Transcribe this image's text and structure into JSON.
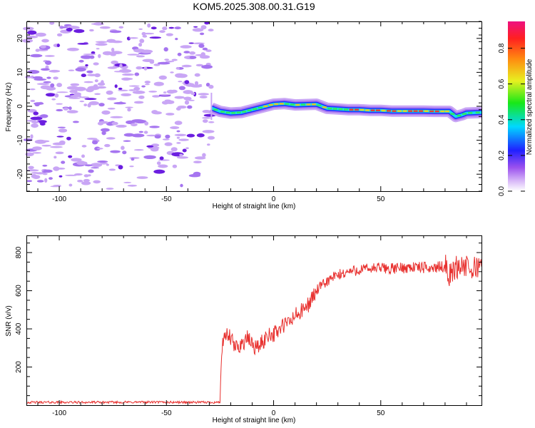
{
  "figure": {
    "title": "KOM5.2025.308.00.31.G19"
  },
  "colors": {
    "snr_line": "#e8312f",
    "axis": "#000000",
    "spec_light": "#c9a6f5",
    "spec_mid": "#a675f0",
    "spec_dark": "#6b1ee0"
  },
  "chart_data": [
    {
      "id": "spectrogram",
      "type": "heatmap",
      "title": "",
      "xlabel": "Height of straight line (km)",
      "ylabel": "Frequency (Hz)",
      "xlim": [
        -115,
        97
      ],
      "ylim": [
        -25,
        25
      ],
      "xticks": [
        -100,
        -50,
        0,
        50
      ],
      "xtick_labels": [
        "-100",
        "-50",
        "0",
        "50"
      ],
      "yticks": [
        -20,
        -10,
        0,
        10,
        20
      ],
      "ytick_labels": [
        "-20",
        "-10",
        "0",
        "10",
        "20"
      ],
      "noise_region_x": [
        -115,
        -29
      ],
      "signal_onset_x": -29,
      "signal_ridge": {
        "x": [
          -29,
          -25,
          -20,
          -15,
          -10,
          -5,
          0,
          5,
          10,
          15,
          20,
          25,
          30,
          35,
          40,
          45,
          50,
          55,
          60,
          65,
          70,
          75,
          80,
          82,
          85,
          88,
          90,
          97
        ],
        "freq": [
          -0.5,
          -1.5,
          -2.0,
          -1.8,
          -1.0,
          -0.2,
          0.6,
          0.8,
          0.4,
          0.5,
          0.6,
          -0.6,
          -0.8,
          -1.0,
          -1.0,
          -1.2,
          -1.2,
          -1.4,
          -1.4,
          -1.4,
          -1.4,
          -1.5,
          -1.5,
          -1.5,
          -3.0,
          -2.5,
          -2.0,
          -1.8
        ]
      },
      "colorbar": {
        "label": "Normalized spectral amplitude",
        "range": [
          0,
          0.95
        ],
        "ticks": [
          0,
          0.2,
          0.4,
          0.6,
          0.8
        ],
        "tick_labels": [
          "0.0",
          "0.2",
          "0.4",
          "0.6",
          "0.8"
        ],
        "colormap": "rainbow (white-purple-blue-cyan-green-yellow-orange-red-magenta)"
      }
    },
    {
      "id": "snr",
      "type": "line",
      "title": "",
      "xlabel": "Height of straight line (km)",
      "ylabel": "SNR (v/v)",
      "xlim": [
        -115,
        97
      ],
      "ylim": [
        0,
        890
      ],
      "xticks": [
        -100,
        -50,
        0,
        50
      ],
      "xtick_labels": [
        "-100",
        "-50",
        "0",
        "50"
      ],
      "yticks": [
        200,
        400,
        600,
        800
      ],
      "ytick_labels": [
        "200",
        "400",
        "600",
        "800"
      ],
      "series": [
        {
          "name": "SNR",
          "x": [
            -115,
            -100,
            -80,
            -60,
            -40,
            -30,
            -25,
            -24.5,
            -24,
            -22,
            -20,
            -18,
            -15,
            -12,
            -10,
            -8,
            -5,
            -2,
            0,
            2,
            5,
            8,
            10,
            12,
            15,
            18,
            20,
            22,
            25,
            28,
            30,
            35,
            40,
            45,
            50,
            55,
            60,
            65,
            70,
            75,
            80,
            82,
            85,
            88,
            90,
            92,
            95,
            97
          ],
          "y": [
            15,
            15,
            15,
            16,
            15,
            15,
            15,
            220,
            300,
            370,
            350,
            300,
            320,
            350,
            320,
            300,
            330,
            380,
            370,
            390,
            420,
            440,
            470,
            480,
            510,
            560,
            600,
            620,
            650,
            670,
            680,
            700,
            710,
            715,
            720,
            715,
            720,
            725,
            720,
            720,
            730,
            680,
            720,
            740,
            720,
            700,
            730,
            750
          ]
        }
      ]
    }
  ]
}
